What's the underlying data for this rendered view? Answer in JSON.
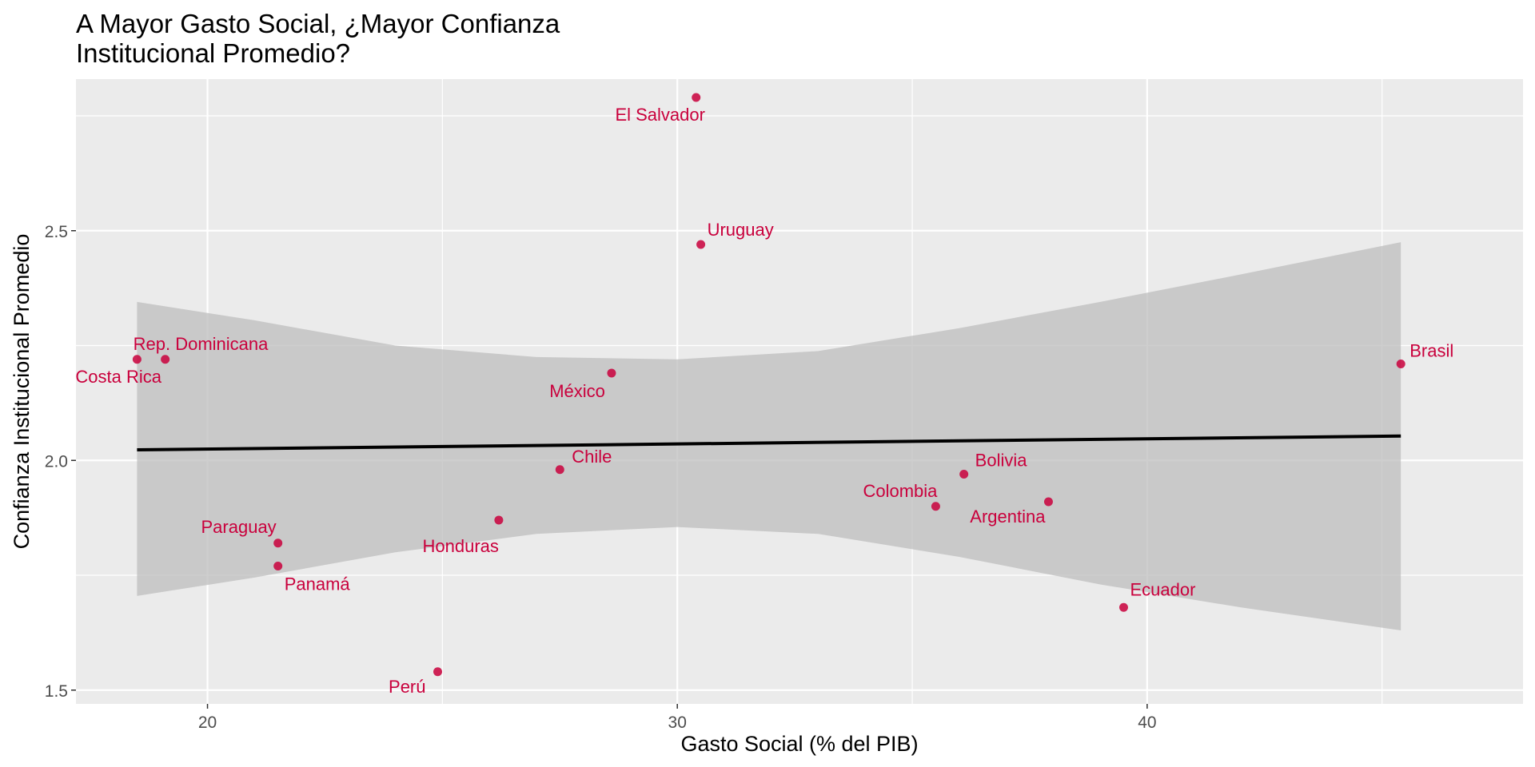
{
  "chart_data": {
    "type": "scatter",
    "title_lines": [
      "A Mayor Gasto Social, ¿Mayor Confianza",
      "Institucional Promedio?"
    ],
    "xlabel": "Gasto Social (% del PIB)",
    "ylabel": "Confianza Institucional Promedio",
    "xlim": [
      17.2,
      48.0
    ],
    "ylim": [
      1.47,
      2.83
    ],
    "x_ticks": [
      20,
      30,
      40
    ],
    "y_ticks": [
      1.5,
      2.0,
      2.5
    ],
    "x_tick_labels": [
      "20",
      "30",
      "40"
    ],
    "y_tick_labels": [
      "1.5",
      "2.0",
      "2.5"
    ],
    "grid": true,
    "point_color": "#c9003c",
    "points": [
      {
        "label": "El Salvador",
        "x": 30.4,
        "y": 2.79
      },
      {
        "label": "Uruguay",
        "x": 30.5,
        "y": 2.47
      },
      {
        "label": "Rep. Dominicana",
        "x": 19.1,
        "y": 2.22
      },
      {
        "label": "Costa Rica",
        "x": 18.5,
        "y": 2.22
      },
      {
        "label": "Brasil",
        "x": 45.4,
        "y": 2.21
      },
      {
        "label": "México",
        "x": 28.6,
        "y": 2.19
      },
      {
        "label": "Chile",
        "x": 27.5,
        "y": 1.98
      },
      {
        "label": "Bolivia",
        "x": 36.1,
        "y": 1.97
      },
      {
        "label": "Colombia",
        "x": 35.5,
        "y": 1.9
      },
      {
        "label": "Argentina",
        "x": 37.9,
        "y": 1.91
      },
      {
        "label": "Honduras",
        "x": 26.2,
        "y": 1.87
      },
      {
        "label": "Paraguay",
        "x": 21.5,
        "y": 1.82
      },
      {
        "label": "Panamá",
        "x": 21.5,
        "y": 1.77
      },
      {
        "label": "Ecuador",
        "x": 39.5,
        "y": 1.68
      },
      {
        "label": "Perú",
        "x": 24.9,
        "y": 1.54
      }
    ],
    "trend_line": {
      "x": [
        18.5,
        45.4
      ],
      "y": [
        2.023,
        2.053
      ],
      "color": "#000000"
    },
    "confidence_band": {
      "x": [
        18.5,
        21,
        24,
        27,
        30,
        33,
        36,
        39,
        42,
        45.4
      ],
      "lower": [
        1.705,
        1.745,
        1.8,
        1.84,
        1.855,
        1.84,
        1.79,
        1.73,
        1.68,
        1.63
      ],
      "upper": [
        2.345,
        2.305,
        2.25,
        2.225,
        2.22,
        2.238,
        2.288,
        2.345,
        2.405,
        2.475
      ],
      "color": "#bebebe"
    },
    "panel_background": "#ebebeb",
    "grid_color": "#ffffff"
  }
}
